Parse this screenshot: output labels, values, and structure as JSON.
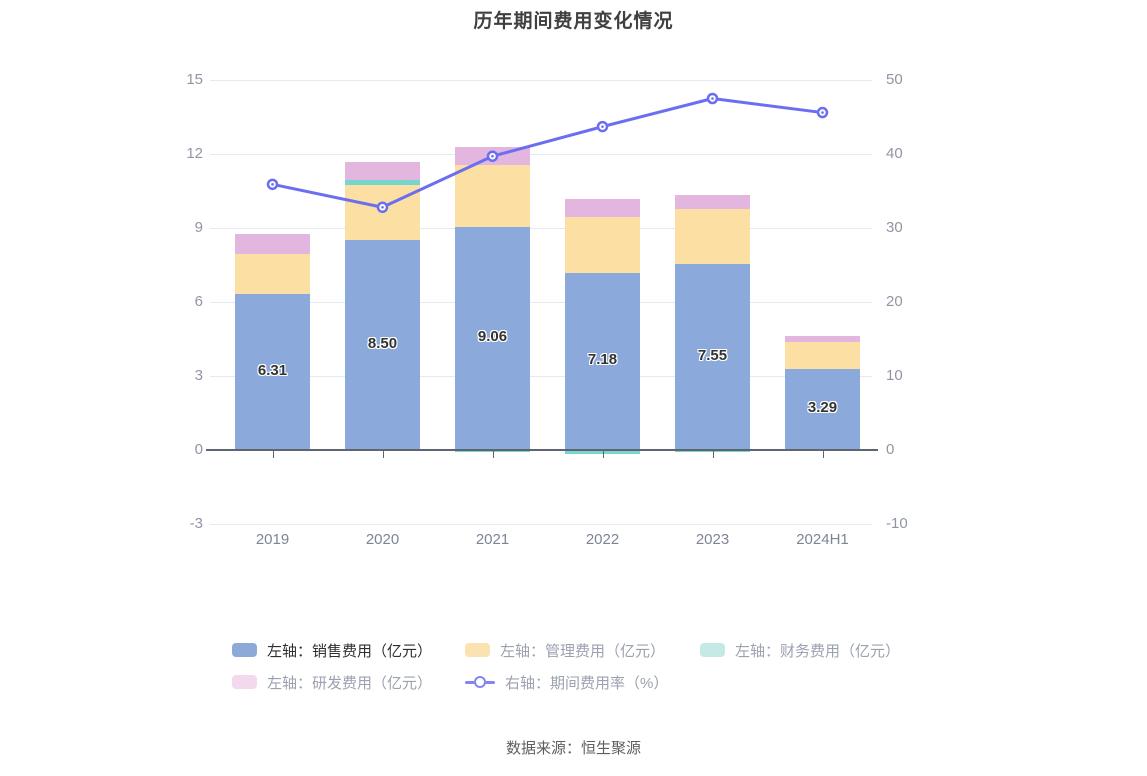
{
  "title": "历年期间费用变化情况",
  "source": "数据来源：恒生聚源",
  "legend": {
    "position": "bottom",
    "items": [
      {
        "label": "左轴：销售费用（亿元）",
        "swatch": "#8CA9D8",
        "marker": "rect",
        "emphasized": true
      },
      {
        "label": "左轴：管理费用（亿元）",
        "swatch": "#FAE3B1",
        "marker": "rect",
        "emphasized": false
      },
      {
        "label": "左轴：财务费用（亿元）",
        "swatch": "#C5EAE5",
        "marker": "rect",
        "emphasized": false
      },
      {
        "label": "左轴：研发费用（亿元）",
        "swatch": "#F3D9EE",
        "marker": "rect",
        "emphasized": false
      },
      {
        "label": "右轴：期间费用率（%）",
        "swatch": "#8386F2",
        "marker": "line-circle",
        "emphasized": false
      }
    ]
  },
  "chart_data": {
    "type": "bar",
    "subtype": "stacked-bars-with-line-overlay",
    "title": "历年期间费用变化情况",
    "categories": [
      "2019",
      "2020",
      "2021",
      "2022",
      "2023",
      "2024H1"
    ],
    "series": [
      {
        "name": "左轴：销售费用（亿元）",
        "type": "bar",
        "stack": "total",
        "axis": "left",
        "color": "#8BA9DA",
        "values": [
          6.31,
          8.5,
          9.06,
          7.18,
          7.55,
          3.29
        ],
        "data_labels": [
          "6.31",
          "8.50",
          "9.06",
          "7.18",
          "7.55",
          "3.29"
        ]
      },
      {
        "name": "左轴：管理费用（亿元）",
        "type": "bar",
        "stack": "total",
        "axis": "left",
        "color": "#FCDFA2",
        "values": [
          1.63,
          2.26,
          2.5,
          2.26,
          2.21,
          1.08
        ]
      },
      {
        "name": "左轴：财务费用（亿元）",
        "type": "bar",
        "stack": "total",
        "axis": "left",
        "color": "#77D6CC",
        "values": [
          0,
          0.2,
          -0.08,
          -0.15,
          -0.08,
          0
        ]
      },
      {
        "name": "左轴：研发费用（亿元）",
        "type": "bar",
        "stack": "total",
        "axis": "left",
        "color": "#E2B6DE",
        "values": [
          0.81,
          0.72,
          0.72,
          0.74,
          0.57,
          0.27
        ]
      },
      {
        "name": "右轴：期间费用率（%）",
        "type": "line",
        "axis": "right",
        "color": "#6B6EF0",
        "values": [
          35.9,
          32.8,
          39.7,
          43.7,
          47.5,
          45.6
        ]
      }
    ],
    "left_axis": {
      "ticks": [
        "15",
        "12",
        "9",
        "6",
        "3",
        "0",
        "-3"
      ],
      "min": -3,
      "max": 15
    },
    "right_axis": {
      "ticks": [
        "50",
        "40",
        "30",
        "20",
        "10",
        "0",
        "-10"
      ],
      "min": -10,
      "max": 50
    },
    "x_axis": {
      "labels": [
        "2019",
        "2020",
        "2021",
        "2022",
        "2023",
        "2024H1"
      ]
    },
    "grid": true,
    "legend_position": "bottom",
    "theme": {
      "grid_line": "#E5E9F4",
      "axis_line": "#5E6470",
      "axis_text": "#8F96A3",
      "x_text": "#7D8594",
      "value_label": "#333333",
      "background": "#FFFFFF"
    }
  }
}
